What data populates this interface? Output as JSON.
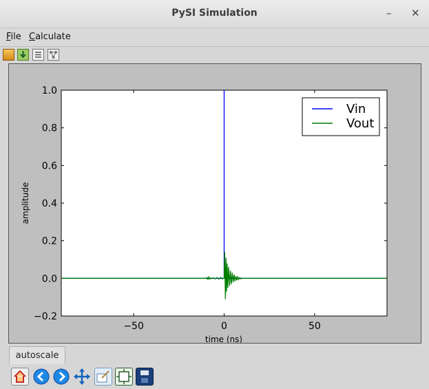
{
  "window": {
    "title": "PySI Simulation",
    "minimize_glyph": "–",
    "close_glyph": "✕"
  },
  "menu": {
    "items": [
      {
        "label": "File",
        "mnemonic": "F",
        "rest": "ile"
      },
      {
        "label": "Calculate",
        "mnemonic": "C",
        "rest": "alculate"
      }
    ]
  },
  "toolbar": {
    "icons": [
      "open-folder-icon",
      "import-icon",
      "list-icon",
      "network-icon"
    ]
  },
  "plot_tab": {
    "label": "autoscale"
  },
  "nav_toolbar": {
    "icons": [
      "home-icon",
      "back-icon",
      "forward-icon",
      "pan-icon",
      "zoom-icon",
      "subplots-icon",
      "save-icon"
    ]
  },
  "colors": {
    "vin": "#0000ff",
    "vout": "#007f00",
    "figure_bg": "#bfbfbf"
  },
  "chart_data": {
    "type": "line",
    "title": "",
    "xlabel": "time (ns)",
    "ylabel": "amplitude",
    "xlim": [
      -90,
      90
    ],
    "ylim": [
      -0.2,
      1.0
    ],
    "xticks": [
      "−50",
      "0",
      "50"
    ],
    "xtick_values": [
      -50,
      0,
      50
    ],
    "yticks": [
      "1.0",
      "0.8",
      "0.6",
      "0.4",
      "0.2",
      "0.0",
      "−0.2"
    ],
    "ytick_values": [
      1.0,
      0.8,
      0.6,
      0.4,
      0.2,
      0.0,
      -0.2
    ],
    "grid": false,
    "legend": "top-right",
    "series": [
      {
        "name": "Vin",
        "x": [
          -90,
          0,
          0,
          0,
          0.05,
          90
        ],
        "y": [
          0,
          0,
          1.0,
          0,
          0,
          0
        ]
      },
      {
        "name": "Vout",
        "x": [
          -90,
          -10,
          -9.5,
          -9,
          -8.5,
          -8,
          -7.5,
          -7,
          -6,
          -5,
          -4,
          -3,
          -2,
          -1,
          -0.5,
          0,
          0.3,
          0.7,
          1.0,
          1.3,
          1.7,
          2.0,
          2.5,
          3.0,
          3.5,
          4.0,
          4.5,
          5.0,
          5.5,
          6.0,
          6.5,
          7.0,
          7.5,
          8.0,
          8.5,
          9.0,
          9.5,
          10.0,
          11,
          90
        ],
        "y": [
          0,
          0,
          0.005,
          -0.005,
          0.008,
          -0.004,
          0.003,
          -0.002,
          0.003,
          -0.003,
          0.004,
          -0.004,
          0.005,
          -0.003,
          0.0,
          0.0,
          0.14,
          -0.11,
          0.11,
          -0.07,
          0.08,
          -0.05,
          0.06,
          -0.04,
          0.04,
          -0.03,
          0.03,
          -0.02,
          0.02,
          -0.015,
          0.012,
          -0.01,
          0.008,
          -0.006,
          0.004,
          -0.003,
          0.002,
          -0.001,
          0,
          0
        ]
      }
    ]
  }
}
